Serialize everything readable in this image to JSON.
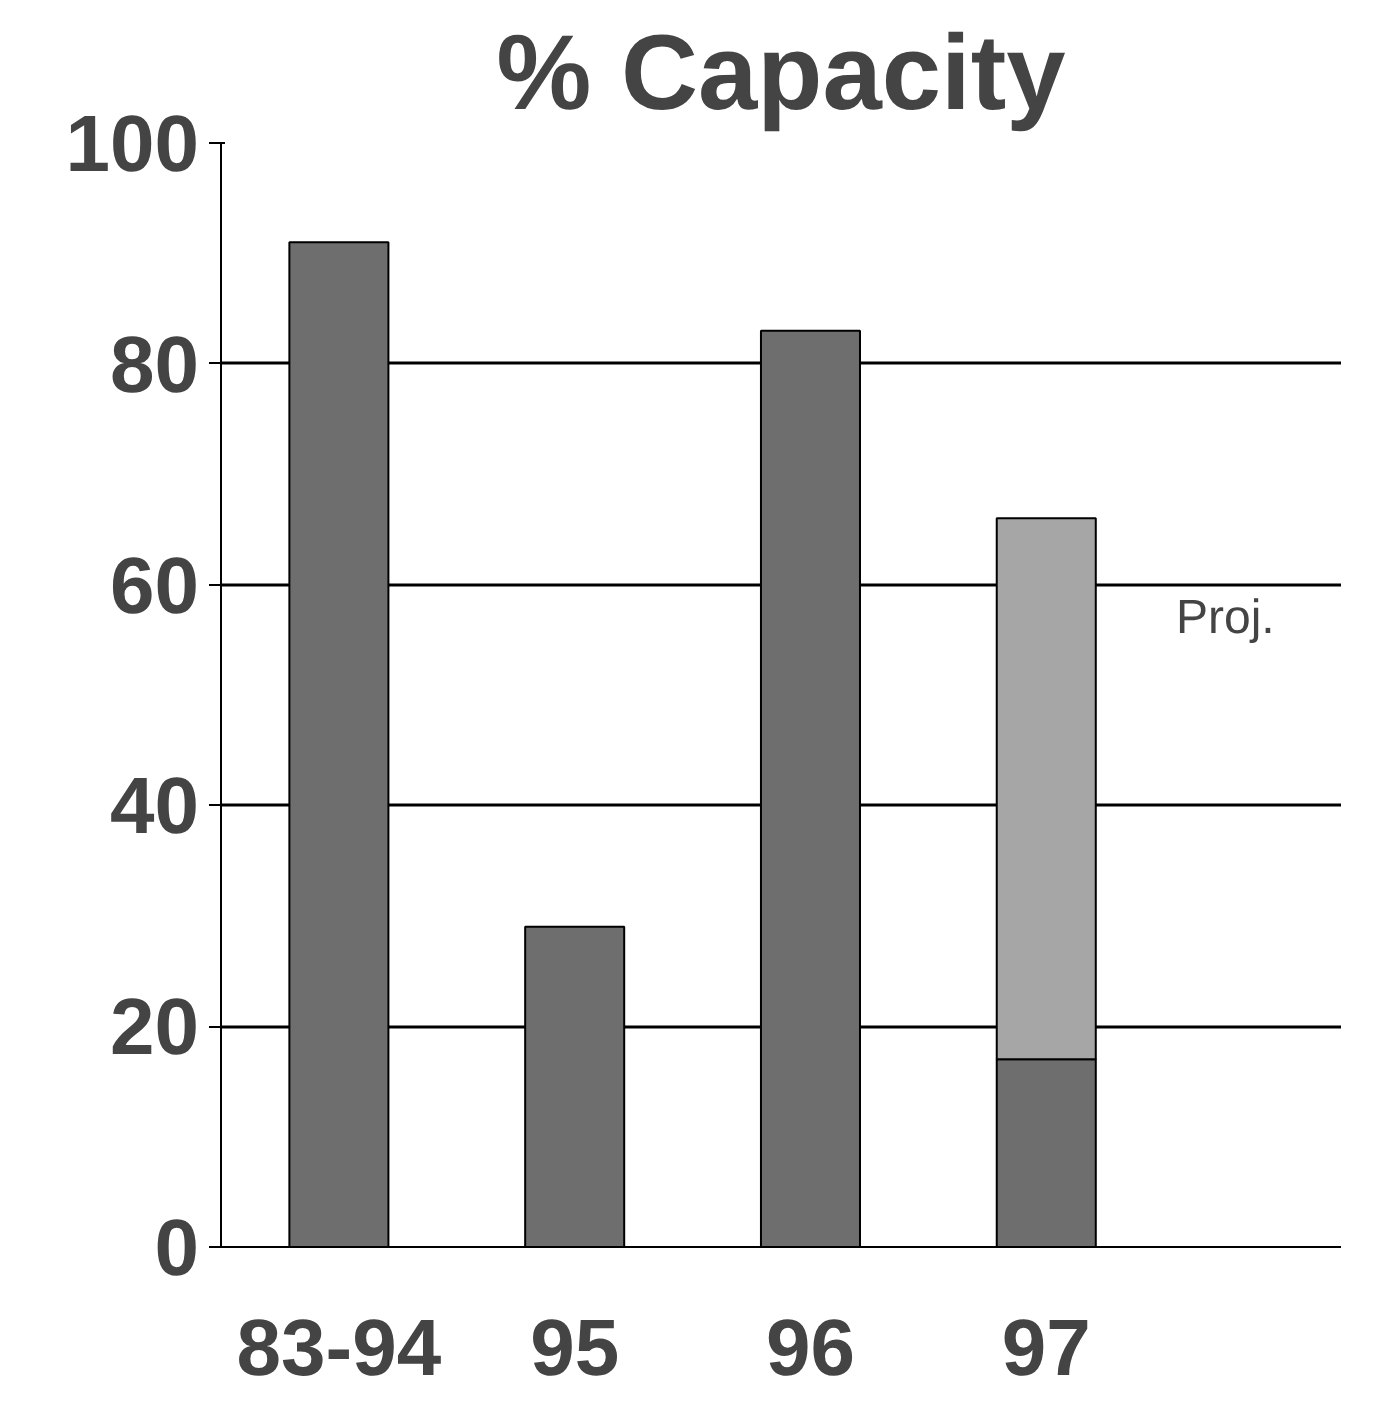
{
  "chart_data": {
    "type": "bar",
    "title": "% Capacity",
    "categories": [
      "83-94",
      "95",
      "96",
      "97"
    ],
    "stacked": true,
    "series": [
      {
        "color": "#6e6e6e",
        "values": [
          91,
          29,
          83,
          17
        ]
      },
      {
        "color": "#a6a6a6",
        "values": [
          null,
          null,
          null,
          49
        ]
      }
    ],
    "ylim": [
      0,
      100
    ],
    "yticks": [
      0,
      20,
      40,
      60,
      80,
      100
    ],
    "grid": "y",
    "annotations": [
      "Proj."
    ]
  }
}
